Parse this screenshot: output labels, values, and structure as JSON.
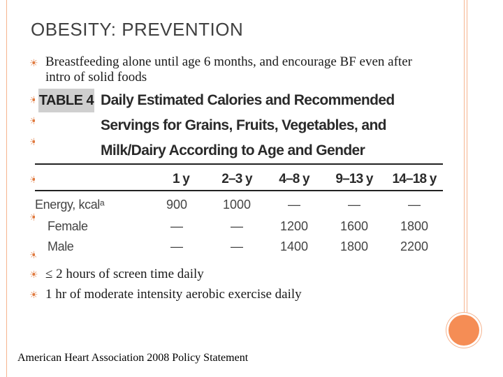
{
  "slide": {
    "title": "OBESITY: PREVENTION",
    "bullet_glyph": "☀",
    "bullets": [
      "Breastfeeding alone until age 6 months, and encourage BF even after intro of solid foods",
      "",
      "",
      "",
      "",
      "",
      "",
      "≤ 2 hours of screen time daily",
      "1 hr of moderate intensity aerobic exercise daily"
    ],
    "footer": "American Heart Association 2008 Policy Statement"
  },
  "table": {
    "tag": "TABLE 4",
    "title": "Daily Estimated Calories and Recommended Servings for Grains, Fruits, Vegetables, and Milk/Dairy According to Age and Gender",
    "columns": [
      "1 y",
      "2–3 y",
      "4–8 y",
      "9–13 y",
      "14–18 y"
    ],
    "rows": [
      {
        "label": "Energy, kcalᵃ",
        "values": [
          "900",
          "1000",
          "—",
          "—",
          "—"
        ]
      },
      {
        "label": "Female",
        "values": [
          "—",
          "—",
          "1200",
          "1600",
          "1800"
        ]
      },
      {
        "label": "Male",
        "values": [
          "—",
          "—",
          "1400",
          "1800",
          "2200"
        ]
      }
    ]
  },
  "colors": {
    "accent": "#f58d55",
    "frame": "#f6b48f",
    "bullet": "#e07a3f"
  }
}
